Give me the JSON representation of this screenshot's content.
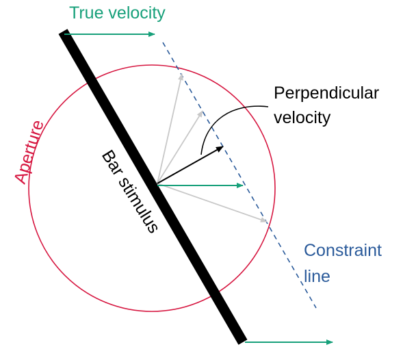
{
  "labels": {
    "true_velocity": "True velocity",
    "aperture": "Aperture",
    "bar_stimulus": "Bar stimulus",
    "perpendicular_velocity_line1": "Perpendicular",
    "perpendicular_velocity_line2": "velocity",
    "constraint_line_line1": "Constraint",
    "constraint_line_line2": "line"
  },
  "colors": {
    "true_velocity": "#17a07a",
    "aperture": "#d6153f",
    "bar": "#000000",
    "constraint_line": "#2a5a9a",
    "perpendicular_arrow": "#000000",
    "candidate_arrows": "#c8c8c8"
  }
}
